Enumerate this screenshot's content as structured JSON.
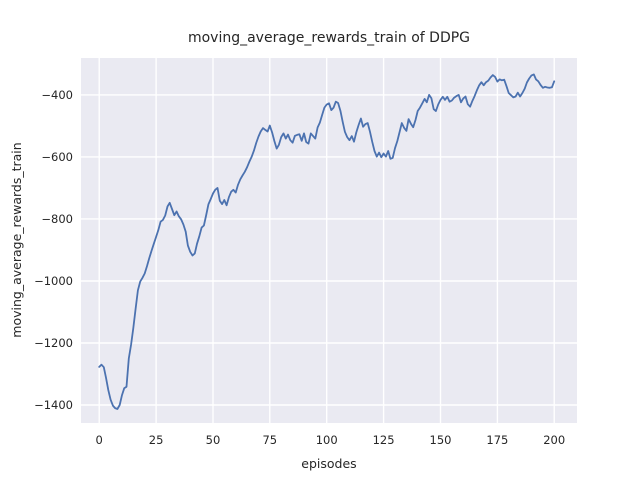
{
  "figure": {
    "title": "moving_average_rewards_train of DDPG",
    "background_color": "#ffffff",
    "axes_background_color": "#eaeaf2",
    "grid_color": "#ffffff",
    "text_color": "#262626"
  },
  "chart_data": {
    "type": "line",
    "title": "moving_average_rewards_train of DDPG",
    "xlabel": "episodes",
    "ylabel": "moving_average_rewards_train",
    "grid": true,
    "legend_position": "none",
    "xlim": [
      -8,
      210
    ],
    "ylim": [
      -1458,
      -281
    ],
    "xticks": [
      0,
      25,
      50,
      75,
      100,
      125,
      150,
      175,
      200
    ],
    "yticks": [
      -400,
      -600,
      -800,
      -1000,
      -1200,
      -1400
    ],
    "series": [
      {
        "name": "moving_average_rewards_train",
        "color": "#4c72b0",
        "x": [
          0,
          1,
          2,
          3,
          4,
          5,
          6,
          7,
          8,
          9,
          10,
          11,
          12,
          13,
          14,
          15,
          16,
          17,
          18,
          19,
          20,
          21,
          22,
          23,
          24,
          25,
          26,
          27,
          28,
          29,
          30,
          31,
          32,
          33,
          34,
          35,
          36,
          37,
          38,
          39,
          40,
          41,
          42,
          43,
          44,
          45,
          46,
          47,
          48,
          49,
          50,
          51,
          52,
          53,
          54,
          55,
          56,
          57,
          58,
          59,
          60,
          61,
          62,
          63,
          64,
          65,
          66,
          67,
          68,
          69,
          70,
          71,
          72,
          73,
          74,
          75,
          76,
          77,
          78,
          79,
          80,
          81,
          82,
          83,
          84,
          85,
          86,
          87,
          88,
          89,
          90,
          91,
          92,
          93,
          94,
          95,
          96,
          97,
          98,
          99,
          100,
          101,
          102,
          103,
          104,
          105,
          106,
          107,
          108,
          109,
          110,
          111,
          112,
          113,
          114,
          115,
          116,
          117,
          118,
          119,
          120,
          121,
          122,
          123,
          124,
          125,
          126,
          127,
          128,
          129,
          130,
          131,
          132,
          133,
          134,
          135,
          136,
          137,
          138,
          139,
          140,
          141,
          142,
          143,
          144,
          145,
          146,
          147,
          148,
          149,
          150,
          151,
          152,
          153,
          154,
          155,
          156,
          157,
          158,
          159,
          160,
          161,
          162,
          163,
          164,
          165,
          166,
          167,
          168,
          169,
          170,
          171,
          172,
          173,
          174,
          175,
          176,
          177,
          178,
          179,
          180,
          181,
          182,
          183,
          184,
          185,
          186,
          187,
          188,
          189,
          190,
          191,
          192,
          193,
          194,
          195,
          196,
          197,
          198,
          199,
          200
        ],
        "y": [
          -1277,
          -1270,
          -1278,
          -1312,
          -1352,
          -1383,
          -1402,
          -1410,
          -1413,
          -1400,
          -1368,
          -1346,
          -1341,
          -1250,
          -1205,
          -1152,
          -1090,
          -1030,
          -1002,
          -990,
          -976,
          -952,
          -926,
          -903,
          -880,
          -858,
          -835,
          -809,
          -803,
          -789,
          -760,
          -748,
          -768,
          -788,
          -776,
          -791,
          -801,
          -818,
          -841,
          -886,
          -906,
          -918,
          -911,
          -880,
          -856,
          -828,
          -821,
          -789,
          -753,
          -736,
          -718,
          -706,
          -700,
          -741,
          -752,
          -739,
          -756,
          -730,
          -712,
          -706,
          -715,
          -690,
          -672,
          -660,
          -648,
          -633,
          -615,
          -600,
          -580,
          -555,
          -534,
          -518,
          -507,
          -513,
          -518,
          -499,
          -521,
          -549,
          -573,
          -561,
          -536,
          -524,
          -541,
          -528,
          -546,
          -554,
          -532,
          -529,
          -527,
          -548,
          -524,
          -552,
          -557,
          -524,
          -533,
          -541,
          -505,
          -489,
          -464,
          -441,
          -431,
          -427,
          -449,
          -441,
          -422,
          -426,
          -451,
          -487,
          -519,
          -536,
          -546,
          -533,
          -551,
          -521,
          -497,
          -476,
          -503,
          -494,
          -491,
          -519,
          -551,
          -581,
          -599,
          -586,
          -601,
          -589,
          -599,
          -581,
          -606,
          -603,
          -572,
          -549,
          -521,
          -491,
          -506,
          -516,
          -478,
          -493,
          -504,
          -481,
          -452,
          -441,
          -427,
          -413,
          -424,
          -400,
          -411,
          -446,
          -452,
          -431,
          -416,
          -406,
          -416,
          -406,
          -422,
          -418,
          -409,
          -404,
          -400,
          -424,
          -412,
          -405,
          -430,
          -438,
          -420,
          -404,
          -385,
          -369,
          -359,
          -369,
          -359,
          -354,
          -344,
          -336,
          -342,
          -357,
          -350,
          -353,
          -351,
          -372,
          -394,
          -401,
          -408,
          -405,
          -393,
          -405,
          -394,
          -380,
          -360,
          -347,
          -337,
          -334,
          -350,
          -356,
          -368,
          -377,
          -374,
          -376,
          -377,
          -375,
          -356
        ]
      }
    ]
  }
}
